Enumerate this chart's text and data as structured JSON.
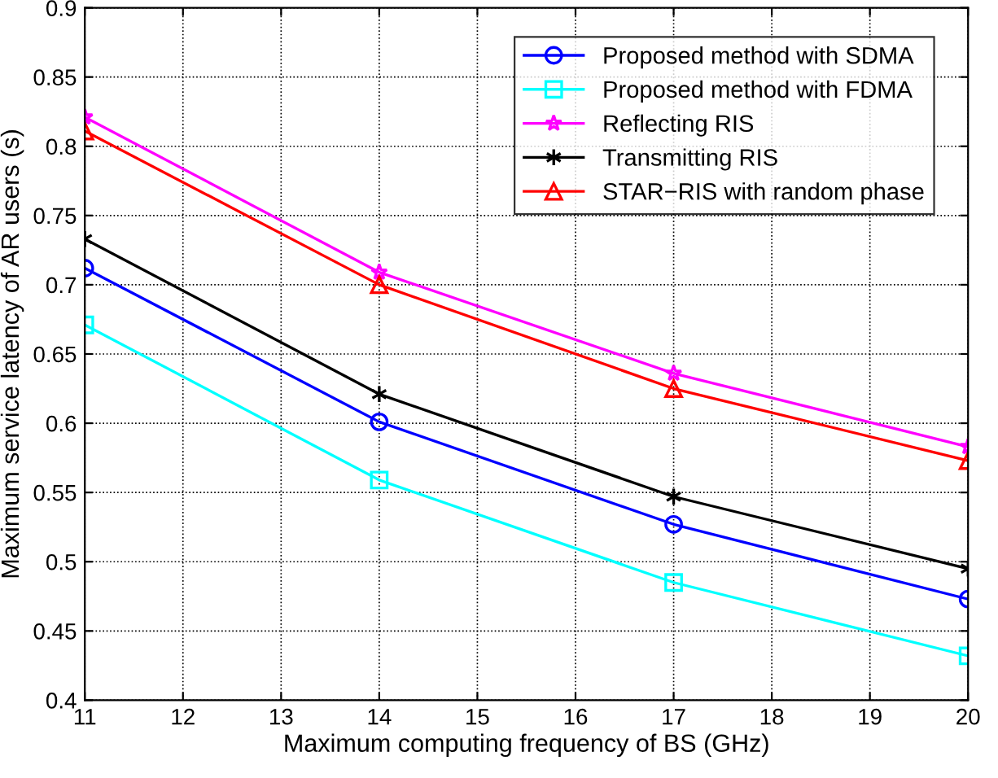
{
  "chart_data": {
    "type": "line",
    "xlabel": "Maximum computing frequency of BS (GHz)",
    "ylabel": "Maximum service latency of AR users (s)",
    "x": [
      11,
      14,
      17,
      20
    ],
    "series": [
      {
        "name": "Proposed method with SDMA",
        "color": "#0000ff",
        "marker": "circle",
        "values": [
          0.712,
          0.601,
          0.527,
          0.473
        ]
      },
      {
        "name": "Proposed method with FDMA",
        "color": "#00ffff",
        "marker": "square",
        "values": [
          0.671,
          0.559,
          0.485,
          0.432
        ]
      },
      {
        "name": "Reflecting RIS",
        "color": "#ff00ff",
        "marker": "star",
        "values": [
          0.821,
          0.709,
          0.636,
          0.583
        ]
      },
      {
        "name": "Transmitting RIS",
        "color": "#000000",
        "marker": "cross",
        "values": [
          0.733,
          0.621,
          0.547,
          0.495
        ]
      },
      {
        "name": "STAR−RIS with random phase",
        "color": "#ff0000",
        "marker": "triangle",
        "values": [
          0.811,
          0.7,
          0.625,
          0.573
        ]
      }
    ],
    "xlim": [
      11,
      20
    ],
    "xticks": [
      11,
      12,
      13,
      14,
      15,
      16,
      17,
      18,
      19,
      20
    ],
    "ylim": [
      0.4,
      0.9
    ],
    "yticks": [
      0.4,
      0.45,
      0.5,
      0.55,
      0.6,
      0.65,
      0.7,
      0.75,
      0.8,
      0.85,
      0.9
    ],
    "grid": true,
    "legend": "top right",
    "line_style": "solid"
  }
}
